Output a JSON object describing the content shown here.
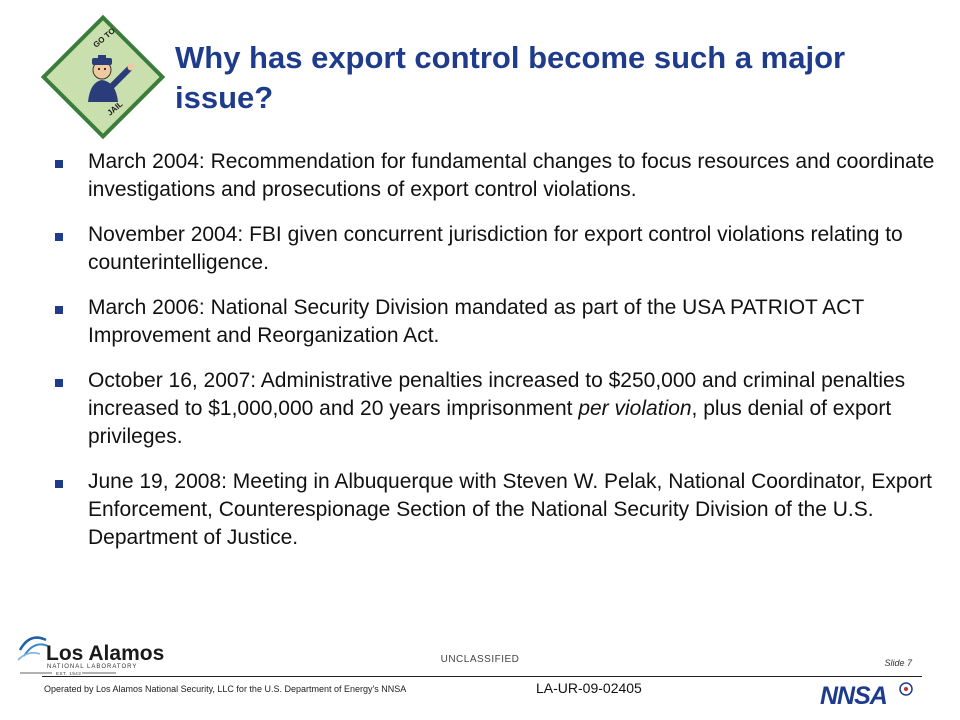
{
  "slide": {
    "title": "Why has export control become such a major issue?",
    "jail_logo": {
      "icon": "go-to-jail-icon",
      "line1": "GO TO",
      "line2": "JAIL",
      "border_color": "#3a7d3a",
      "fill_color": "#c9dfae"
    },
    "bullets": [
      {
        "text": "March 2004:  Recommendation for fundamental changes to focus resources and coordinate investigations and prosecutions of export control violations."
      },
      {
        "text": "November 2004:  FBI given concurrent jurisdiction for export control violations relating to counterintelligence."
      },
      {
        "text": "March 2006:  National Security Division mandated as part of the USA PATRIOT ACT Improvement and Reorganization Act."
      },
      {
        "text_before": "October 16, 2007:  Administrative penalties increased to $250,000 and criminal penalties increased to $1,000,000 and 20 years imprisonment ",
        "emphasis": "per violation",
        "text_after": ", plus denial of export privileges."
      },
      {
        "text": "June 19, 2008:  Meeting in Albuquerque with Steven W. Pelak, National Coordinator, Export Enforcement, Counterespionage Section of the National Security Division of the U.S. Department of Justice."
      }
    ],
    "accent_color": "#1f3c8c"
  },
  "footer": {
    "lanl_logo": {
      "icon": "los-alamos-logo",
      "name": "Los Alamos",
      "subtitle": "NATIONAL LABORATORY",
      "est": "EST. 1943"
    },
    "classification": "UNCLASSIFIED",
    "slide_label": "Slide 7",
    "operated_by": "Operated by Los Alamos National Security, LLC for the U.S. Department of Energy's NNSA",
    "doc_number": "LA-UR-09-02405",
    "nnsa_logo": {
      "icon": "nnsa-logo",
      "text": "NNSA"
    }
  }
}
